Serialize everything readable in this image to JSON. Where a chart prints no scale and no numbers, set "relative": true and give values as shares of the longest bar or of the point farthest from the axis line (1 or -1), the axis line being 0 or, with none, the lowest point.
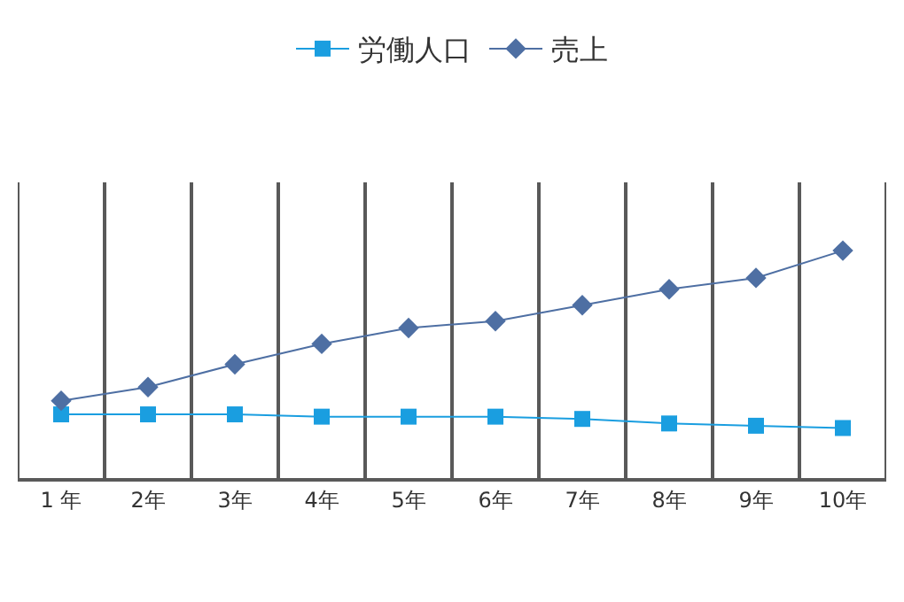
{
  "chart_data": {
    "type": "line",
    "relative": true,
    "categories": [
      "1 年",
      "2年",
      "3年",
      "4年",
      "5年",
      "6年",
      "7年",
      "8年",
      "9年",
      "10年"
    ],
    "series": [
      {
        "name": "労働人口",
        "color": "#1a9ee0",
        "marker": "square",
        "values": [
          0.28,
          0.28,
          0.28,
          0.27,
          0.27,
          0.27,
          0.26,
          0.24,
          0.23,
          0.22
        ]
      },
      {
        "name": "売上",
        "color": "#4e6fa3",
        "marker": "diamond",
        "values": [
          0.34,
          0.4,
          0.5,
          0.59,
          0.66,
          0.69,
          0.76,
          0.83,
          0.88,
          1
        ]
      }
    ],
    "grid": "x",
    "legend": "top",
    "line_style": "solid"
  }
}
